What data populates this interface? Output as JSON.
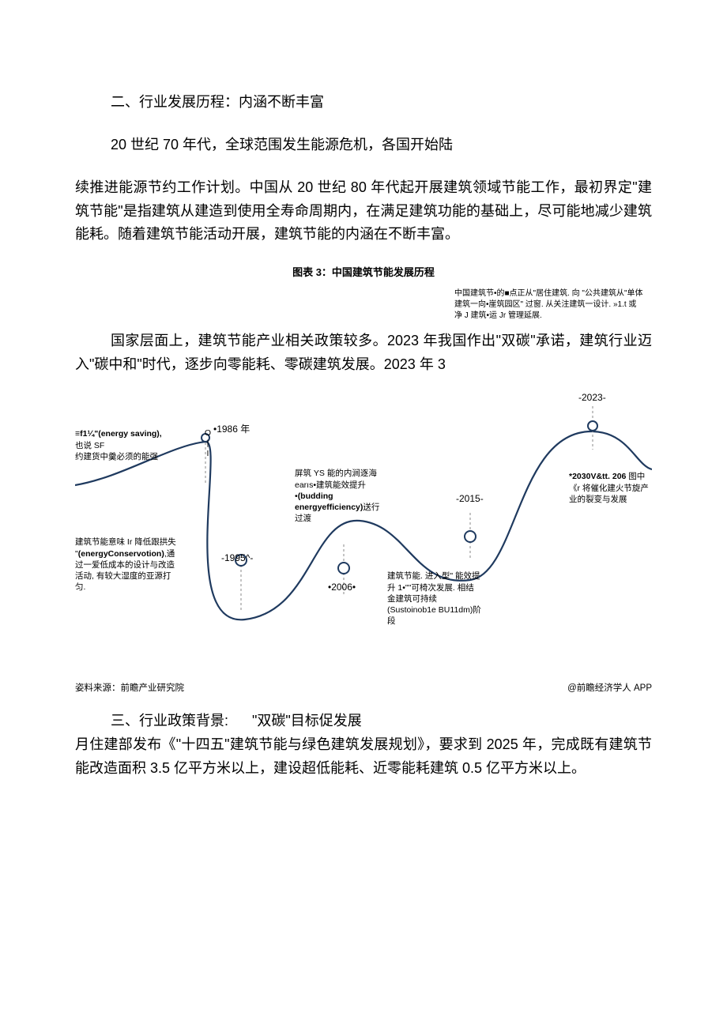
{
  "heading2": "二、行业发展历程：内涵不断丰富",
  "intro_line": "20 世纪 70 年代，全球范围发生能源危机，各国开始陆",
  "body1": "续推进能源节约工作计划。中国从 20 世纪 80 年代起开展建筑领域节能工作，最初界定\"建筑节能\"是指建筑从建造到使用全寿命周期内，在满足建筑功能的基础上，尽可能地减少建筑能耗。随着建筑节能活动开展，建筑节能的内涵在不断丰富。",
  "chart_title": "图表 3：中国建筑节能发展历程",
  "top_note": "中国建筑节•的■点正从\"居住建筑. 向 \"公共建筑从\"单体建筑一向•崖筑园区\" 过窗. 从关注建筑一设计. »1.t 或净 J 建筑•运 Jr 管理延展.",
  "mid_para": "国家层面上，建筑节能产业相关政策较多。2023 年我国作出\"双碳\"承诺，建筑行业迈入\"碳中和\"时代，逐步向零能耗、零碳建筑发展。2023 年 3",
  "chart": {
    "curve_color": "#1f3a5f",
    "curve_width": 2.2,
    "marker_stroke": "#1f3a5f",
    "marker_fill": "#ffffff",
    "years": {
      "y1986": "•1986 年",
      "y1995": "-1995^-",
      "y2006": "•2006•",
      "y2015": "-2015-",
      "y2023": "-2023-"
    },
    "labels": {
      "l1": "≡f1¼\"(energy saving),也说 SF\n约建货中羹必须的能强",
      "l1b": "O\n|\nI",
      "l2": "建筑节能意味 Ir 降低跟拱失 \"(energyConservotion),通过一爱低成本的设计与改造活动, 有较大湿度的亚源打匀.",
      "l3": "屏筑 YS 能的内涧逐海 earıs•建筑能效提升•(budding energyefficiency)送行过渡",
      "l4": "建筑节能. 进入型\" 能效提升 1•\"\"可椅次发展. 相结金建筑可持续(Sustoinob1e BU11dm)阶段",
      "l5": "*2030V&tt. 206 图中 《r 将催化建火节旋产业的裂变与发展"
    }
  },
  "source_left": "姿料来源：前瞻产业研究院",
  "source_right": "@前瞻经济学人 APP",
  "heading3_pre": "三、行业政策背景:",
  "heading3_post": "\"双碳\"目标促发展",
  "final": "月住建部发布《\"十四五\"建筑节能与绿色建筑发展规划》，要求到 2025 年，完成既有建筑节能改造面积 3.5 亿平方米以上，建设超低能耗、近零能耗建筑 0.5 亿平方米以上。"
}
